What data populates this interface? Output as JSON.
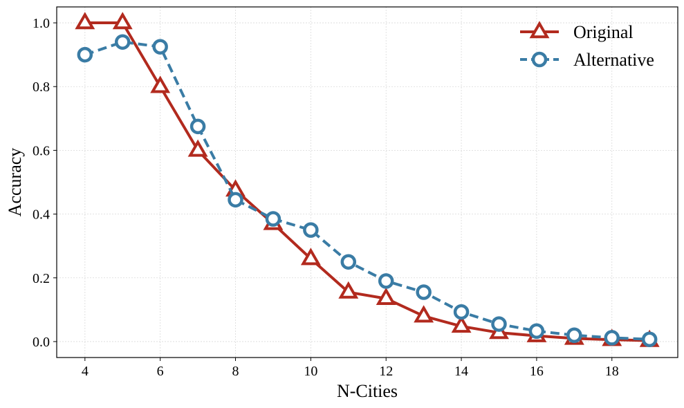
{
  "chart_data": {
    "type": "line",
    "title": "",
    "xlabel": "N-Cities",
    "ylabel": "Accuracy",
    "x": [
      4,
      5,
      6,
      7,
      8,
      9,
      10,
      11,
      12,
      13,
      14,
      15,
      16,
      17,
      18,
      19
    ],
    "xlim": [
      3.25,
      19.75
    ],
    "ylim": [
      -0.05,
      1.05
    ],
    "xticks": [
      4,
      6,
      8,
      10,
      12,
      14,
      16,
      18
    ],
    "xtick_labels": [
      "4",
      "6",
      "8",
      "10",
      "12",
      "14",
      "16",
      "18"
    ],
    "yticks": [
      0.0,
      0.2,
      0.4,
      0.6,
      0.8,
      1.0
    ],
    "ytick_labels": [
      "0.0",
      "0.2",
      "0.4",
      "0.6",
      "0.8",
      "1.0"
    ],
    "grid": true,
    "legend_position": "top-right",
    "series": [
      {
        "name": "Original",
        "color": "#b22a1e",
        "line_style": "solid",
        "marker": "triangle",
        "values": [
          1.0,
          1.0,
          0.8,
          0.6,
          0.475,
          0.37,
          0.26,
          0.155,
          0.135,
          0.08,
          0.048,
          0.028,
          0.018,
          0.01,
          0.006,
          0.003
        ]
      },
      {
        "name": "Alternative",
        "color": "#3a7ca5",
        "line_style": "dashed",
        "marker": "circle",
        "values": [
          0.9,
          0.94,
          0.925,
          0.675,
          0.445,
          0.385,
          0.35,
          0.25,
          0.19,
          0.155,
          0.093,
          0.055,
          0.033,
          0.02,
          0.012,
          0.007
        ]
      }
    ]
  }
}
